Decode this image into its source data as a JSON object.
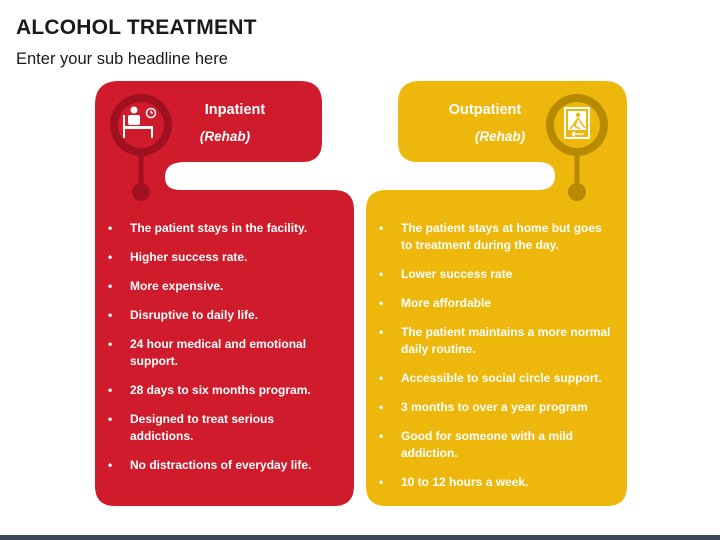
{
  "title": "ALCOHOL TREATMENT",
  "subtitle": "Enter your sub headline here",
  "colors": {
    "inpatient": "#cf1b2b",
    "inpatient_dark": "#a0101e",
    "outpatient": "#eeb70b",
    "outpatient_dark": "#b88a00"
  },
  "inpatient": {
    "title": "Inpatient",
    "subtitle": "(Rehab)",
    "icon": "hospital-bed-patient-icon",
    "items": [
      "The patient stays in the facility.",
      "Higher success rate.",
      "More expensive.",
      "Disruptive to daily life.",
      "24 hour medical and emotional support.",
      "28 days to six months program.",
      "Designed to treat serious addictions.",
      "No distractions of everyday life."
    ]
  },
  "outpatient": {
    "title": "Outpatient",
    "subtitle": "(Rehab)",
    "icon": "exit-door-person-icon",
    "items": [
      "The patient stays at home but goes to treatment during the day.",
      "Lower success rate",
      "More affordable",
      "The patient maintains a more normal daily routine.",
      "Accessible to social circle support.",
      "3 months to over a year program",
      "Good for someone with a mild addiction.",
      "10 to 12 hours a week."
    ]
  }
}
